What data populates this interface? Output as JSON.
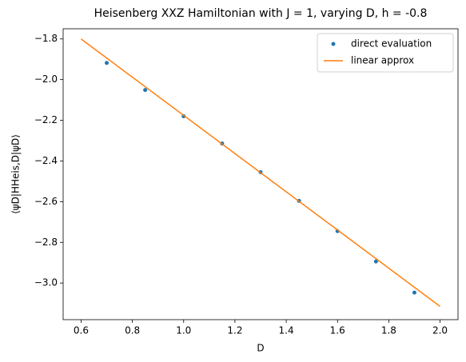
{
  "chart_data": {
    "type": "scatter",
    "title": "Heisenberg XXZ Hamiltonian with J = 1, varying D, h = -0.8",
    "x_label": "D",
    "y_label": "⟨ψD|HHeis,D|ψD⟩",
    "xlim": [
      0.53,
      2.07
    ],
    "ylim": [
      -3.18,
      -1.75
    ],
    "xticks": [
      0.6,
      0.8,
      {
        "value": 1.0,
        "label": "1.0"
      },
      1.2,
      1.4,
      1.6,
      1.8,
      {
        "value": 2.0,
        "label": "2.0"
      }
    ],
    "yticks": [
      {
        "value": -3.0,
        "label": "−3.0"
      },
      {
        "value": -2.8,
        "label": "−2.8"
      },
      {
        "value": -2.6,
        "label": "−2.6"
      },
      {
        "value": -2.4,
        "label": "−2.4"
      },
      {
        "value": -2.2,
        "label": "−2.2"
      },
      {
        "value": -2.0,
        "label": "−2.0"
      },
      {
        "value": -1.8,
        "label": "−1.8"
      }
    ],
    "grid": false,
    "legend": "upper right",
    "series": [
      {
        "name": "direct evaluation",
        "color": "#1f77b4",
        "style": "marker",
        "x": [
          0.7,
          0.85,
          1.0,
          1.15,
          1.3,
          1.45,
          1.6,
          1.75,
          1.9
        ],
        "values": [
          -1.918,
          -2.051,
          -2.18,
          -2.314,
          -2.455,
          -2.596,
          -2.745,
          -2.894,
          -3.047
        ]
      },
      {
        "name": "linear approx",
        "color": "#ff7f0e",
        "style": "line",
        "x": [
          0.6,
          2.0
        ],
        "values": [
          -1.8,
          -3.115
        ]
      }
    ]
  }
}
